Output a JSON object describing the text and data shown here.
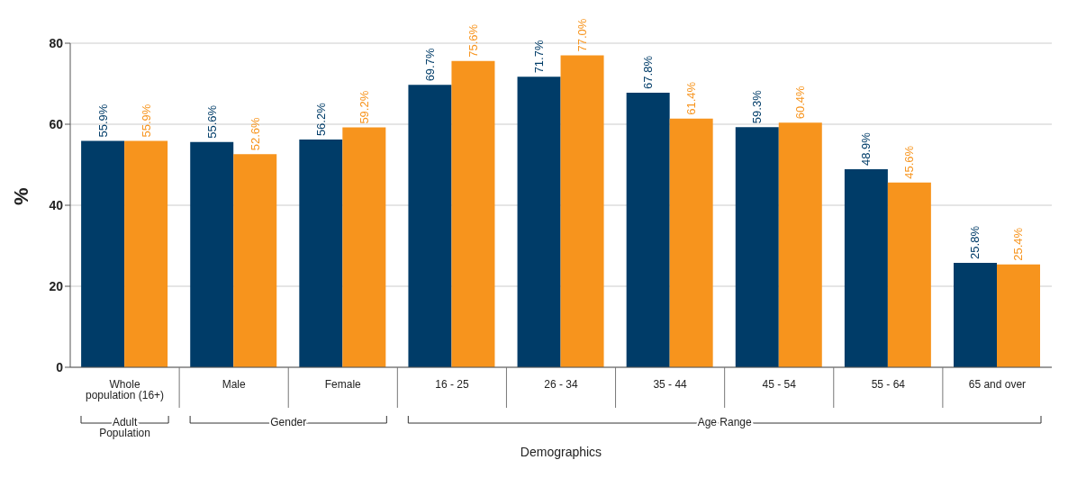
{
  "chart_data": {
    "type": "bar",
    "xlabel": "Demographics",
    "ylabel": "%",
    "categories": [
      "Whole population (16+)",
      "Male",
      "Female",
      "16 - 25",
      "26 - 34",
      "35 - 44",
      "45 - 54",
      "55 - 64",
      "65 and over"
    ],
    "series": [
      {
        "color": "#003c68",
        "values": [
          55.9,
          55.6,
          56.2,
          69.7,
          71.7,
          67.8,
          59.3,
          48.9,
          25.8
        ],
        "value_labels": [
          "55.9%",
          "55.6%",
          "56.2%",
          "69.7%",
          "71.7%",
          "67.8%",
          "59.3%",
          "48.9%",
          "25.8%"
        ]
      },
      {
        "color": "#f7941d",
        "values": [
          55.9,
          52.6,
          59.2,
          75.6,
          77.0,
          61.4,
          60.4,
          45.6,
          25.4
        ],
        "value_labels": [
          "55.9%",
          "52.6%",
          "59.2%",
          "75.6%",
          "77.0%",
          "61.4%",
          "60.4%",
          "45.6%",
          "25.4%"
        ]
      }
    ],
    "annotations": [
      "Adult Population",
      "Gender",
      "Age Range"
    ],
    "ylim": [
      0,
      80
    ],
    "yticks": [
      0,
      20,
      40,
      60,
      80
    ],
    "grid": "y",
    "legend": false
  }
}
